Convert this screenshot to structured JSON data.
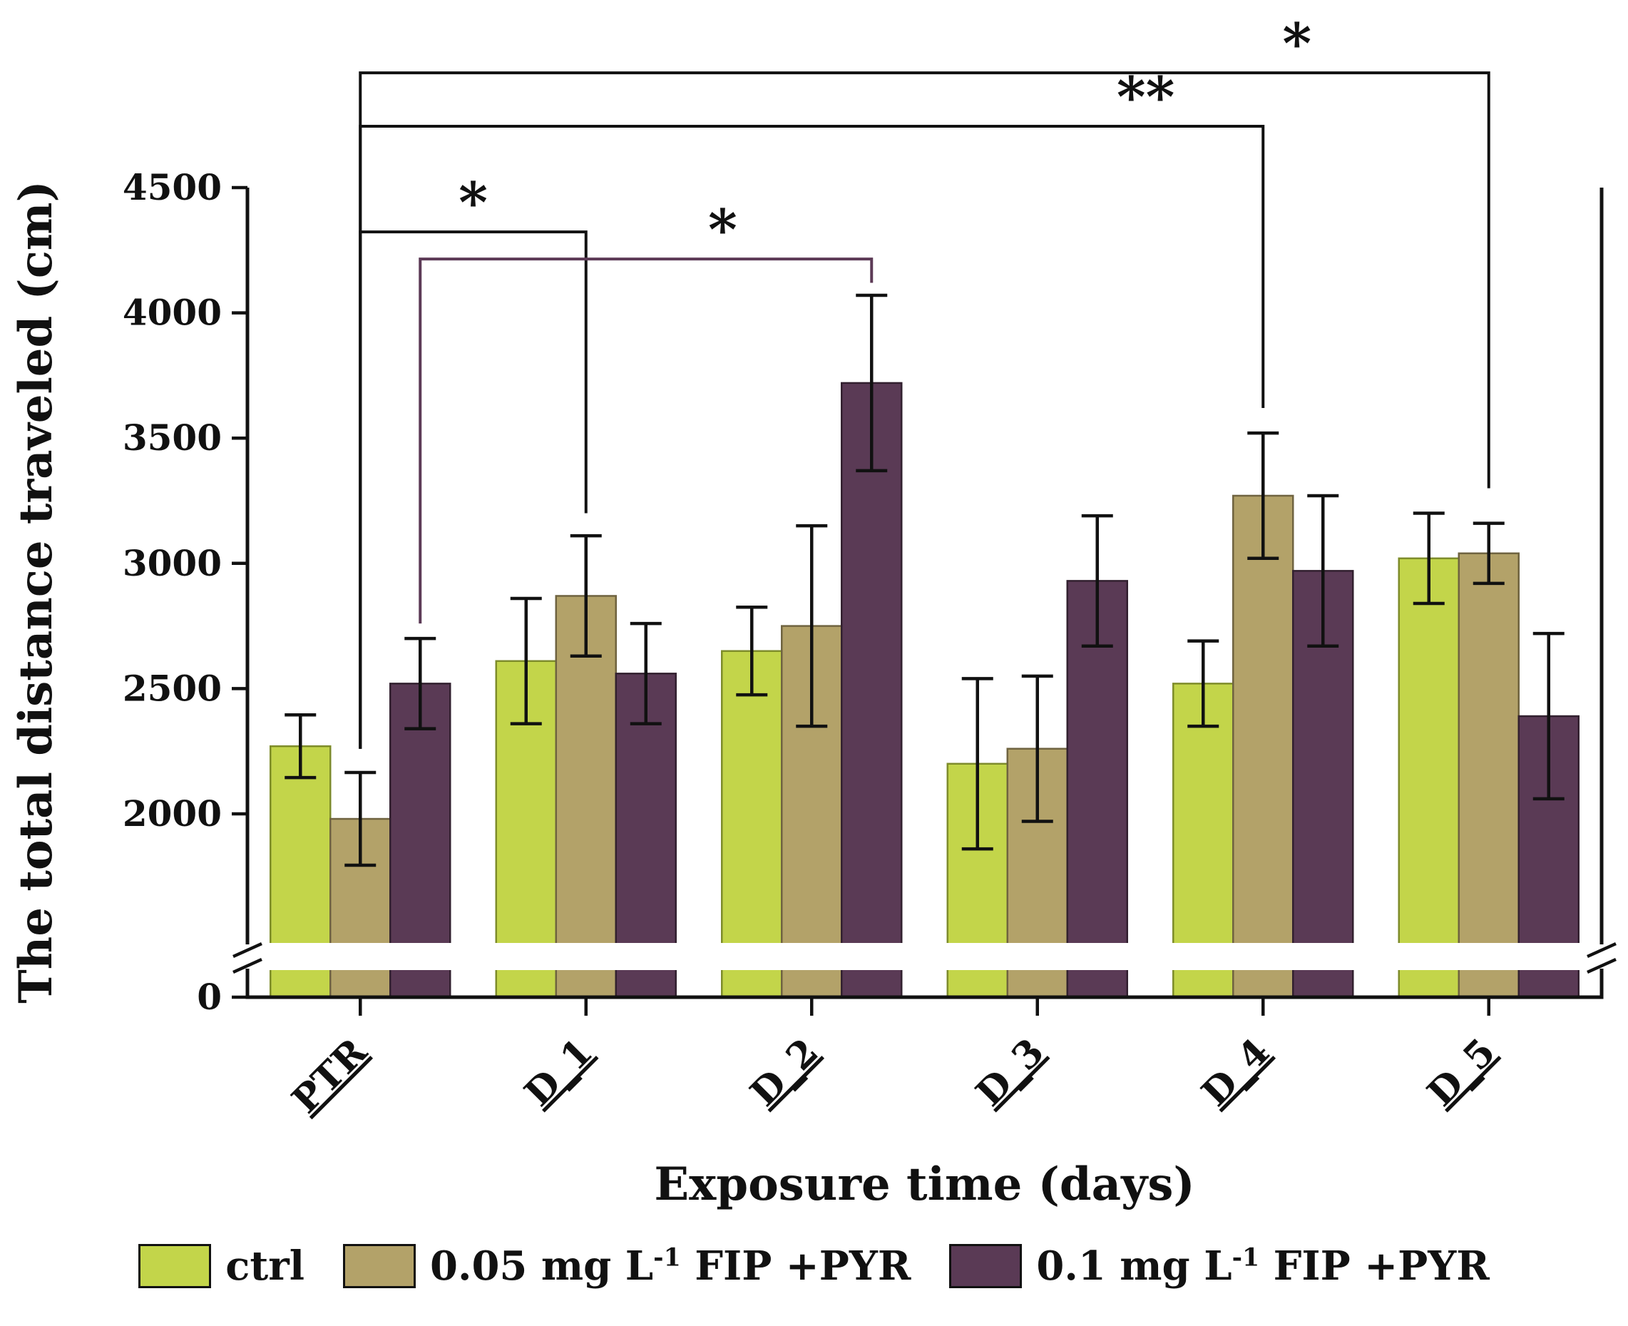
{
  "figure": {
    "background": "#ffffff",
    "text_color": "#111111"
  },
  "chart_data": {
    "type": "bar",
    "title": "",
    "xlabel": "Exposure time (days)",
    "ylabel": "The total distance traveled (cm)",
    "categories": [
      "PTR",
      "D_1",
      "D_2",
      "D_3",
      "D_4",
      "D_5"
    ],
    "y_ticks": [
      2000,
      2500,
      3000,
      3500,
      4000,
      4500
    ],
    "y_origin": "0",
    "ylim": [
      0,
      4500
    ],
    "grid": false,
    "legend_position": "bottom",
    "axis_break": {
      "broken": true,
      "gap_below": 2000,
      "note": "y-axis broken between 0 and ~1900"
    },
    "series": [
      {
        "name": "ctrl",
        "label_pre": "ctrl",
        "label_sup": "",
        "label_post": "",
        "color": "#c3d54a",
        "edge": "#7e8c2a",
        "values": [
          2270,
          2610,
          2650,
          2200,
          2520,
          3020
        ],
        "errors": [
          125,
          250,
          175,
          340,
          170,
          180
        ]
      },
      {
        "name": "0.05 mg L-1 FIP +PYR",
        "label_pre": "0.05 mg L",
        "label_sup": "-1",
        "label_post": " FIP +PYR",
        "color": "#b3a269",
        "edge": "#6f6340",
        "values": [
          1980,
          2870,
          2750,
          2260,
          3270,
          3040
        ],
        "errors": [
          185,
          240,
          400,
          290,
          250,
          120
        ]
      },
      {
        "name": "0.1 mg L-1 FIP +PYR",
        "label_pre": "0.1 mg L",
        "label_sup": "-1",
        "label_post": " FIP +PYR",
        "color": "#5a3a55",
        "edge": "#32202f",
        "values": [
          2520,
          2560,
          3720,
          2930,
          2970,
          2390
        ],
        "errors": [
          180,
          200,
          350,
          260,
          300,
          330
        ]
      }
    ],
    "significance": [
      {
        "label": "*",
        "color": "#111111",
        "from": {
          "group": 0,
          "series": 1
        },
        "to": {
          "group": 5,
          "series": 1
        },
        "top": 4958,
        "drop_from": 2260,
        "drop_to": 3300,
        "label_t": 0.83
      },
      {
        "label": "**",
        "color": "#111111",
        "from": {
          "group": 0,
          "series": 1
        },
        "to": {
          "group": 4,
          "series": 1
        },
        "top": 4745,
        "drop_from": 2260,
        "drop_to": 3620,
        "label_t": 0.87
      },
      {
        "label": "*",
        "color": "#111111",
        "from": {
          "group": 0,
          "series": 1
        },
        "to": {
          "group": 1,
          "series": 1
        },
        "top": 4323,
        "drop_from": 2260,
        "drop_to": 3200,
        "label_t": 0.5
      },
      {
        "label": "*",
        "color": "#5c3a56",
        "from": {
          "group": 0,
          "series": 2
        },
        "to": {
          "group": 2,
          "series": 2
        },
        "top": 4215,
        "drop_from": 2760,
        "drop_to": 4120,
        "label_t": 0.67
      }
    ]
  }
}
